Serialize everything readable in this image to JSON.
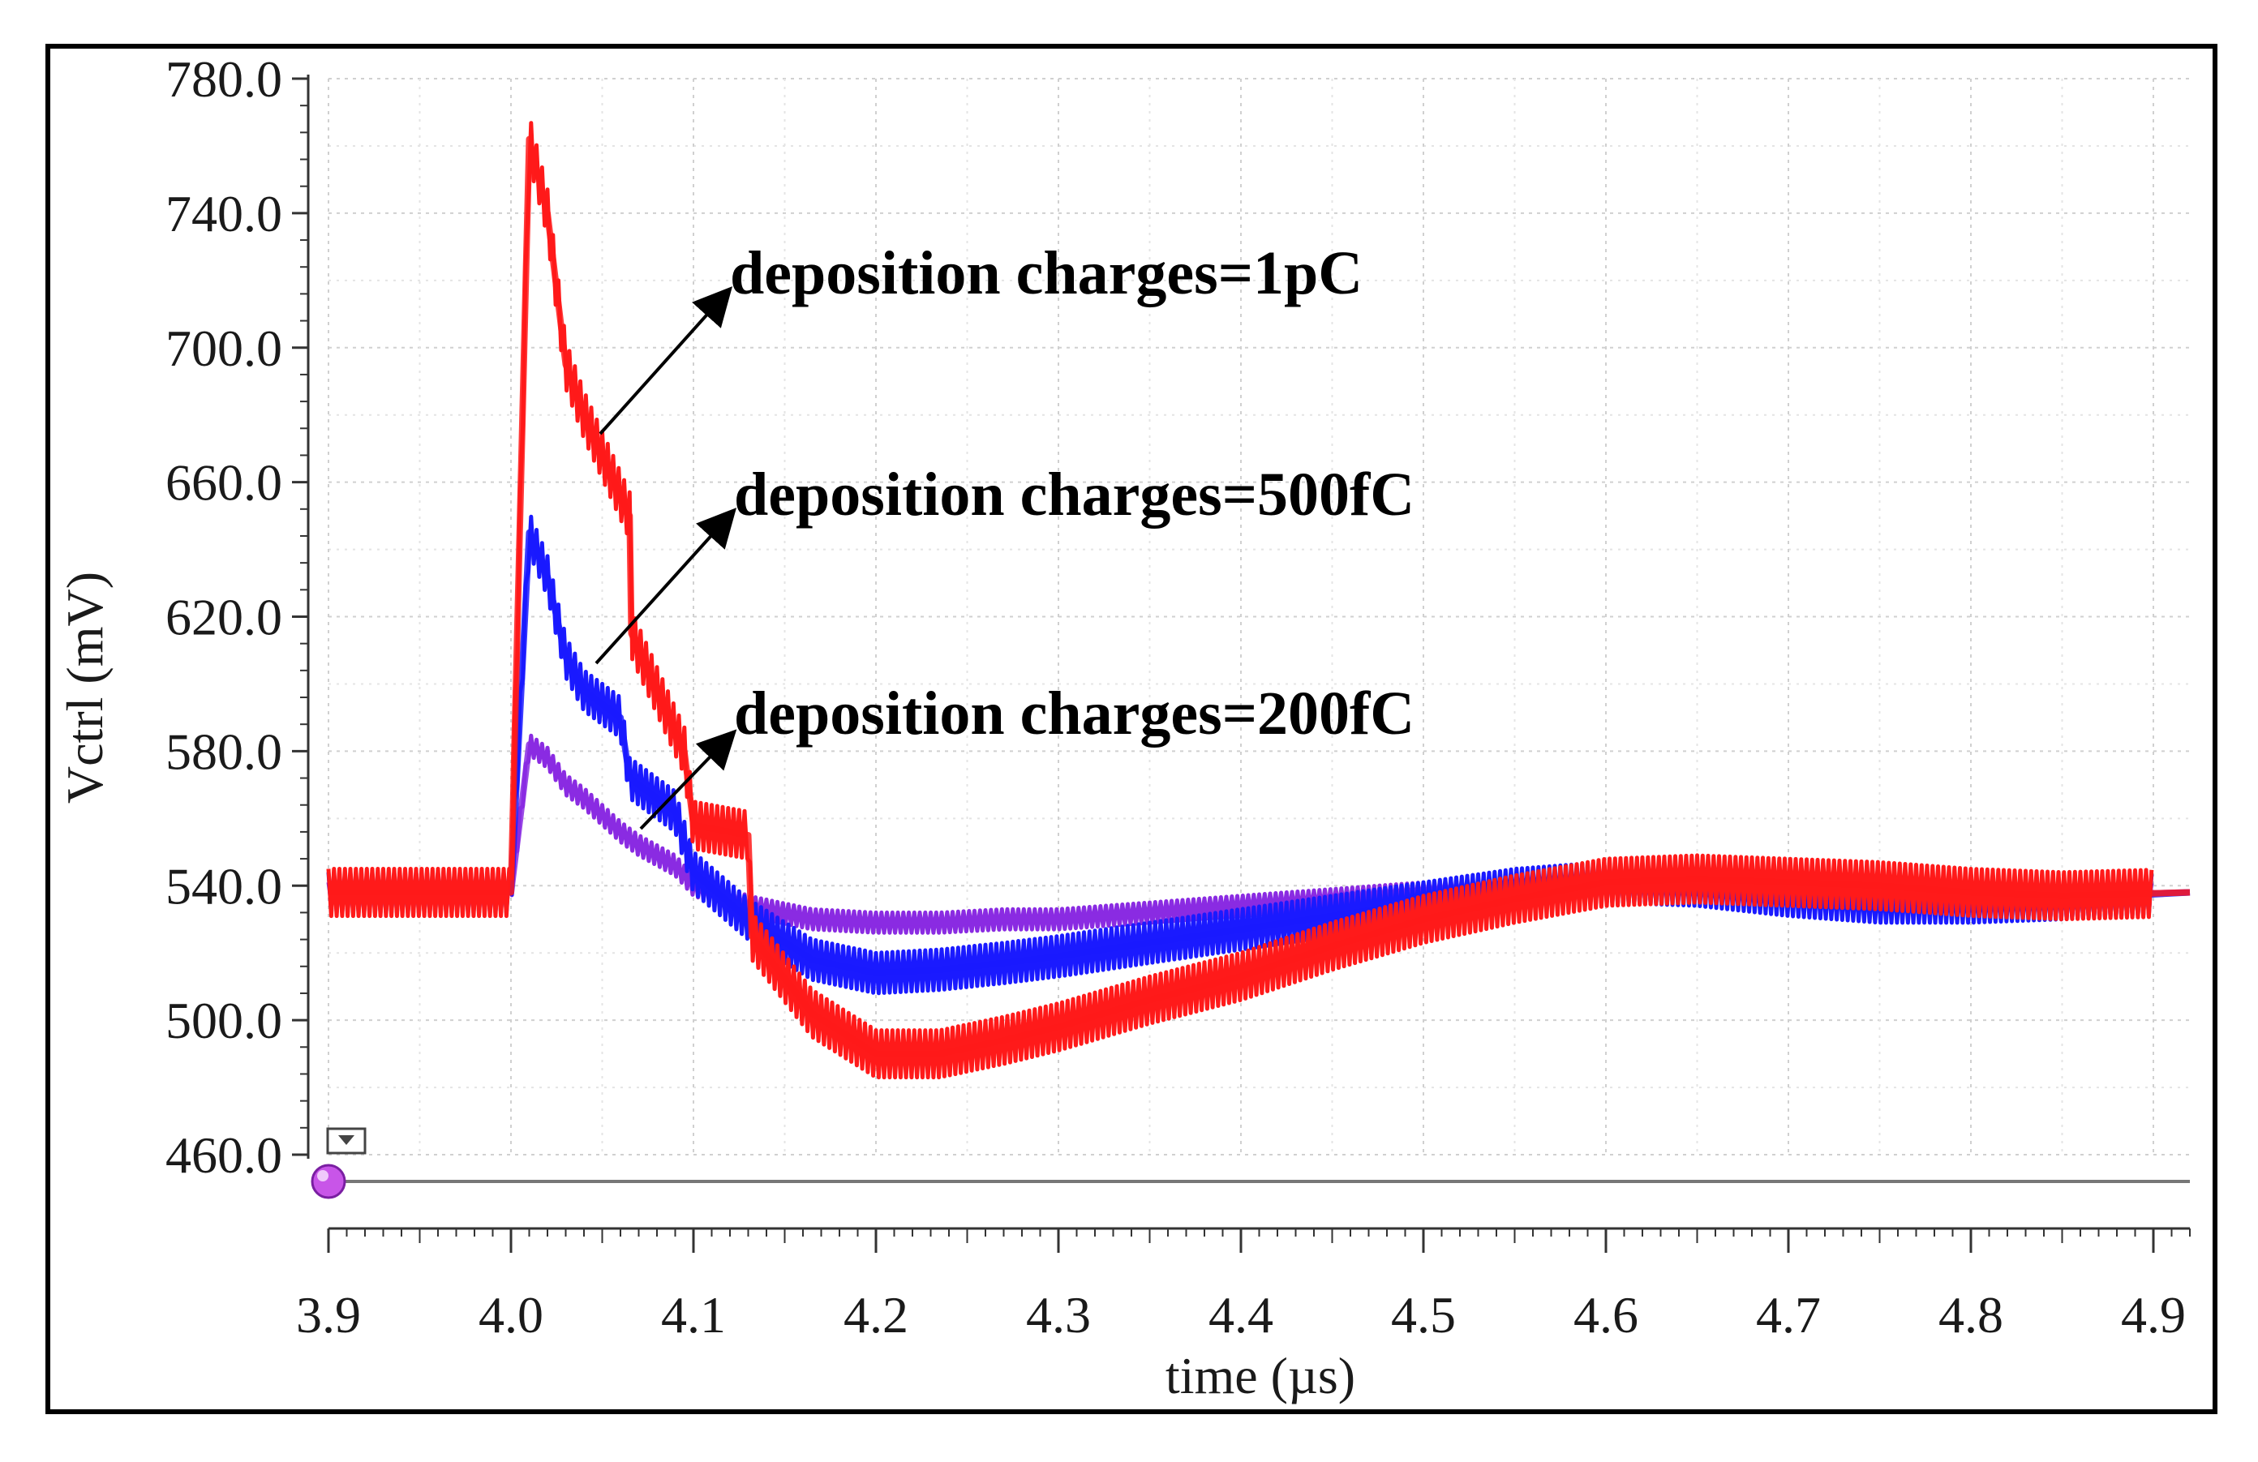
{
  "chart_data": {
    "type": "line",
    "title": "",
    "xlabel": "time (µs)",
    "ylabel": "Vctrl (mV)",
    "xlim": [
      3.9,
      4.92
    ],
    "ylim": [
      460.0,
      780.0
    ],
    "x_ticks": [
      "3.9",
      "4.0",
      "4.1",
      "4.2",
      "4.3",
      "4.4",
      "4.5",
      "4.6",
      "4.7",
      "4.8",
      "4.9"
    ],
    "y_ticks": [
      "460.0",
      "500.0",
      "540.0",
      "580.0",
      "620.0",
      "660.0",
      "700.0",
      "740.0",
      "780.0"
    ],
    "grid": true,
    "series": [
      {
        "name": "deposition charges=200fC",
        "color": "#8a2be2",
        "x": [
          3.9,
          4.0,
          4.01,
          4.02,
          4.03,
          4.04,
          4.06,
          4.07,
          4.09,
          4.1,
          4.13,
          4.165,
          4.2,
          4.235,
          4.27,
          4.3,
          4.35,
          4.4,
          4.45,
          4.5,
          4.55,
          4.6,
          4.65,
          4.7,
          4.75,
          4.8,
          4.85,
          4.92
        ],
        "y": [
          538,
          538,
          582,
          578,
          570,
          566,
          556,
          552,
          546,
          540,
          534,
          530,
          529,
          529,
          530,
          530,
          532,
          534,
          536,
          538,
          540,
          540,
          539,
          537,
          536,
          536,
          537,
          538
        ]
      },
      {
        "name": "deposition charges=500fC",
        "color": "#1a1aff",
        "x": [
          3.9,
          4.0,
          4.01,
          4.02,
          4.03,
          4.04,
          4.06,
          4.065,
          4.07,
          4.09,
          4.1,
          4.13,
          4.165,
          4.2,
          4.235,
          4.27,
          4.3,
          4.35,
          4.4,
          4.45,
          4.5,
          4.55,
          4.6,
          4.65,
          4.7,
          4.75,
          4.8,
          4.85,
          4.92
        ],
        "y": [
          538,
          538,
          645,
          632,
          608,
          598,
          590,
          572,
          570,
          562,
          544,
          530,
          518,
          514,
          515,
          517,
          519,
          523,
          527,
          531,
          535,
          539,
          541,
          540,
          537,
          535,
          535,
          536,
          538
        ]
      },
      {
        "name": "deposition charges=1pC",
        "color": "#ff1a1a",
        "x": [
          3.9,
          4.0,
          4.01,
          4.02,
          4.03,
          4.04,
          4.065,
          4.066,
          4.07,
          4.095,
          4.1,
          4.13,
          4.132,
          4.165,
          4.2,
          4.235,
          4.27,
          4.3,
          4.35,
          4.4,
          4.45,
          4.5,
          4.55,
          4.6,
          4.65,
          4.7,
          4.75,
          4.8,
          4.85,
          4.92
        ],
        "y": [
          538,
          538,
          762,
          740,
          695,
          680,
          650,
          615,
          610,
          580,
          558,
          555,
          525,
          502,
          490,
          490,
          494,
          498,
          506,
          513,
          522,
          530,
          536,
          541,
          542,
          541,
          540,
          538,
          537,
          538
        ]
      }
    ],
    "annotations": [
      {
        "text": "deposition charges=1pC",
        "points_to": "1pC"
      },
      {
        "text": "deposition charges=500fC",
        "points_to": "500fC"
      },
      {
        "text": "deposition charges=200fC",
        "points_to": "200fC"
      }
    ]
  }
}
